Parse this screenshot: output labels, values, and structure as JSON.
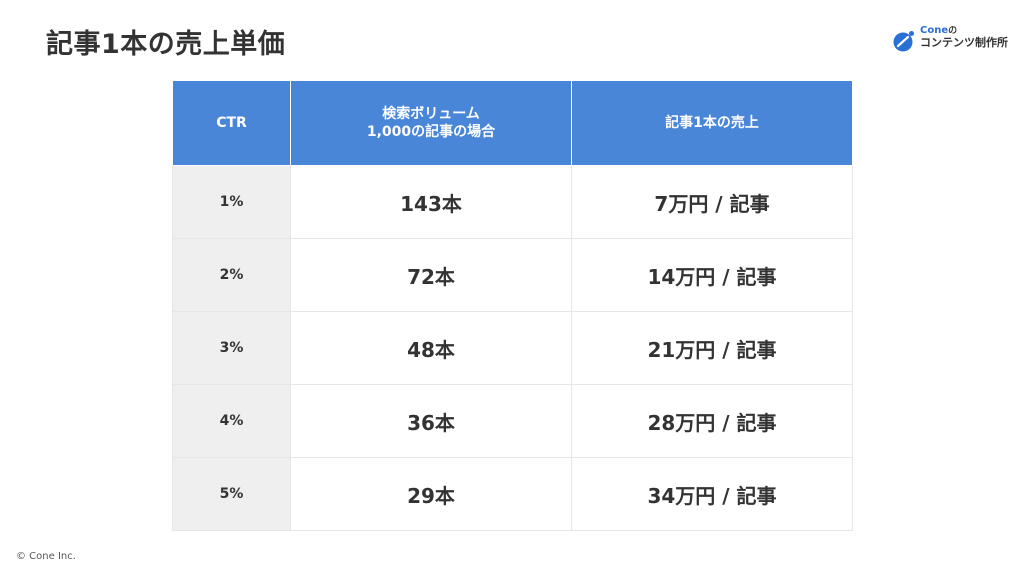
{
  "slide": {
    "title": "記事1本の売上単価"
  },
  "logo": {
    "brand": "Cone",
    "brand_suffix": "の",
    "subtitle": "コンテンツ制作所",
    "accent_color": "#2a6fd6"
  },
  "table": {
    "header_color": "#4a86d8",
    "headers": {
      "ctr": "CTR",
      "count_line1": "検索ボリューム",
      "count_line2": "1,000の記事の場合",
      "sales": "記事1本の売上"
    },
    "rows": [
      {
        "ctr": "1%",
        "count": "143本",
        "sales": "7万円 / 記事"
      },
      {
        "ctr": "2%",
        "count": "72本",
        "sales": "14万円 / 記事"
      },
      {
        "ctr": "3%",
        "count": "48本",
        "sales": "21万円 / 記事"
      },
      {
        "ctr": "4%",
        "count": "36本",
        "sales": "28万円 / 記事"
      },
      {
        "ctr": "5%",
        "count": "29本",
        "sales": "34万円 / 記事"
      }
    ]
  },
  "footer": {
    "copyright": "© Cone Inc."
  }
}
